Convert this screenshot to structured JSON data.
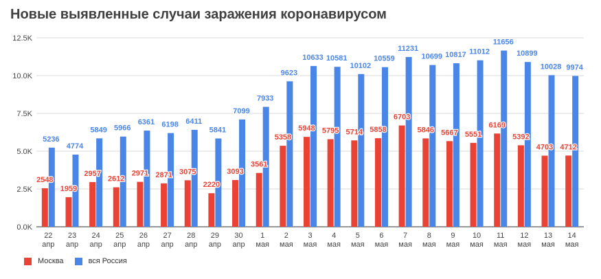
{
  "chart_data": {
    "type": "bar",
    "title": "Новые выявленные случаи заражения коронавирусом",
    "xlabel": "",
    "ylabel": "",
    "categories": [
      [
        "22",
        "апр"
      ],
      [
        "23",
        "апр"
      ],
      [
        "24",
        "апр"
      ],
      [
        "25",
        "апр"
      ],
      [
        "26",
        "апр"
      ],
      [
        "27",
        "апр"
      ],
      [
        "28",
        "апр"
      ],
      [
        "29",
        "апр"
      ],
      [
        "30",
        "апр"
      ],
      [
        "1",
        "мая"
      ],
      [
        "2",
        "мая"
      ],
      [
        "3",
        "мая"
      ],
      [
        "4",
        "мая"
      ],
      [
        "5",
        "мая"
      ],
      [
        "6",
        "мая"
      ],
      [
        "7",
        "мая"
      ],
      [
        "8",
        "мая"
      ],
      [
        "9",
        "мая"
      ],
      [
        "10",
        "мая"
      ],
      [
        "11",
        "мая"
      ],
      [
        "12",
        "мая"
      ],
      [
        "13",
        "мая"
      ],
      [
        "14",
        "мая"
      ]
    ],
    "series": [
      {
        "name": "Москва",
        "color": "#ea4335",
        "values": [
          2548,
          1959,
          2957,
          2612,
          2971,
          2871,
          3075,
          2220,
          3093,
          3561,
          5358,
          5948,
          5795,
          5714,
          5858,
          6703,
          5846,
          5667,
          5551,
          6169,
          5392,
          4703,
          4712
        ]
      },
      {
        "name": "вся Россия",
        "color": "#4a86e8",
        "values": [
          5236,
          4774,
          5849,
          5966,
          6361,
          6198,
          6411,
          5841,
          7099,
          7933,
          9623,
          10633,
          10581,
          10102,
          10559,
          11231,
          10699,
          10817,
          11012,
          11656,
          10899,
          10028,
          9974
        ]
      }
    ],
    "ylim": [
      0,
      12500
    ],
    "yticks": [
      {
        "value": 0,
        "label": "0.0K"
      },
      {
        "value": 2500,
        "label": "2.5K"
      },
      {
        "value": 5000,
        "label": "5.0K"
      },
      {
        "value": 7500,
        "label": "7.5K"
      },
      {
        "value": 10000,
        "label": "10.0K"
      },
      {
        "value": 12500,
        "label": "12.5K"
      }
    ],
    "grid": true,
    "legend_position": "bottom-left"
  }
}
